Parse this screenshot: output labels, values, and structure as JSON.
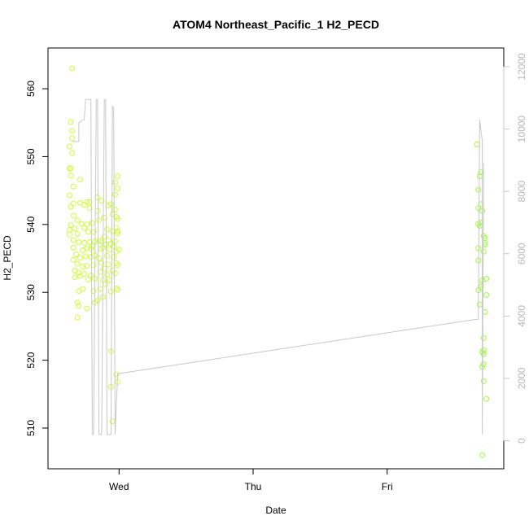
{
  "chart_data": {
    "type": "scatter",
    "title": "ATOM4 Northeast_Pacific_1 H2_PECD",
    "xlabel": "Date",
    "ylabel": "H2_PECD",
    "x_axis": {
      "range": [
        -0.53,
        2.87
      ],
      "ticks": [
        {
          "label": "Wed",
          "value": 0
        },
        {
          "label": "Thu",
          "value": 1
        },
        {
          "label": "Fri",
          "value": 2
        }
      ]
    },
    "y_left": {
      "range": [
        504,
        566
      ],
      "ticks": [
        510,
        520,
        530,
        540,
        550,
        560
      ]
    },
    "y_right": {
      "range": [
        -900,
        12600
      ],
      "ticks": [
        0,
        2000,
        4000,
        6000,
        8000,
        10000,
        12000
      ],
      "color": "#c8c8c8"
    },
    "series": [
      {
        "kind": "points",
        "color": "#ccff33",
        "points": [
          [
            -0.35,
            563.0
          ],
          [
            -0.36,
            555.1
          ],
          [
            -0.35,
            553.8
          ],
          [
            -0.35,
            552.7
          ],
          [
            -0.37,
            551.5
          ],
          [
            -0.35,
            550.5
          ],
          [
            -0.37,
            548.2
          ],
          [
            -0.36,
            548.3
          ],
          [
            -0.36,
            547.2
          ],
          [
            -0.29,
            546.6
          ],
          [
            -0.34,
            545.6
          ],
          [
            -0.37,
            544.3
          ],
          [
            -0.29,
            543.2
          ],
          [
            -0.24,
            543.3
          ],
          [
            -0.26,
            542.9
          ],
          [
            -0.22,
            543.3
          ],
          [
            -0.34,
            543.1
          ],
          [
            -0.36,
            542.6
          ],
          [
            -0.22,
            542.4
          ],
          [
            -0.34,
            541.3
          ],
          [
            -0.31,
            540.6
          ],
          [
            -0.28,
            540.1
          ],
          [
            -0.24,
            540.0
          ],
          [
            -0.36,
            539.9
          ],
          [
            -0.33,
            539.4
          ],
          [
            -0.37,
            539.2
          ],
          [
            -0.37,
            538.5
          ],
          [
            -0.31,
            538.6
          ],
          [
            -0.26,
            539.5
          ],
          [
            -0.23,
            538.9
          ],
          [
            -0.34,
            537.7
          ],
          [
            -0.3,
            537.4
          ],
          [
            -0.26,
            537.3
          ],
          [
            -0.22,
            537.4
          ],
          [
            -0.34,
            536.6
          ],
          [
            -0.27,
            536.2
          ],
          [
            -0.24,
            536.5
          ],
          [
            -0.21,
            536.4
          ],
          [
            -0.32,
            535.6
          ],
          [
            -0.29,
            535.1
          ],
          [
            -0.25,
            535.3
          ],
          [
            -0.21,
            535.2
          ],
          [
            -0.34,
            534.8
          ],
          [
            -0.31,
            534.2
          ],
          [
            -0.27,
            533.8
          ],
          [
            -0.24,
            533.9
          ],
          [
            -0.33,
            533.2
          ],
          [
            -0.3,
            532.9
          ],
          [
            -0.26,
            532.7
          ],
          [
            -0.21,
            532.5
          ],
          [
            -0.33,
            532.2
          ],
          [
            -0.29,
            532.4
          ],
          [
            -0.23,
            531.9
          ],
          [
            -0.3,
            530.2
          ],
          [
            -0.27,
            530.5
          ],
          [
            -0.31,
            528.5
          ],
          [
            -0.3,
            528.0
          ],
          [
            -0.24,
            527.6
          ],
          [
            -0.31,
            526.3
          ],
          [
            -0.2,
            540.2
          ],
          [
            -0.19,
            538.9
          ],
          [
            -0.18,
            537.5
          ],
          [
            -0.2,
            536.8
          ],
          [
            -0.18,
            535.5
          ],
          [
            -0.19,
            534.0
          ],
          [
            -0.18,
            532.0
          ],
          [
            -0.19,
            530.2
          ],
          [
            -0.18,
            528.5
          ],
          [
            -0.16,
            544.0
          ],
          [
            -0.16,
            542.0
          ],
          [
            -0.15,
            540.6
          ],
          [
            -0.15,
            537.6
          ],
          [
            -0.14,
            536.4
          ],
          [
            -0.13,
            537.5
          ],
          [
            -0.12,
            536.6
          ],
          [
            -0.11,
            538.2
          ],
          [
            -0.1,
            537.0
          ],
          [
            -0.15,
            535.0
          ],
          [
            -0.13,
            534.3
          ],
          [
            -0.11,
            533.5
          ],
          [
            -0.14,
            533.0
          ],
          [
            -0.12,
            531.8
          ],
          [
            -0.1,
            531.2
          ],
          [
            -0.14,
            530.5
          ],
          [
            -0.12,
            529.3
          ],
          [
            -0.16,
            528.8
          ],
          [
            -0.13,
            543.5
          ],
          [
            -0.11,
            541.0
          ],
          [
            -0.09,
            539.3
          ],
          [
            -0.08,
            537.7
          ],
          [
            -0.07,
            536.3
          ],
          [
            -0.09,
            535.4
          ],
          [
            -0.08,
            534.1
          ],
          [
            -0.09,
            532.6
          ],
          [
            -0.07,
            531.8
          ],
          [
            -0.06,
            530.1
          ],
          [
            -0.08,
            542.8
          ],
          [
            -0.06,
            543.0
          ],
          [
            -0.05,
            541.5
          ],
          [
            -0.05,
            539.0
          ],
          [
            -0.06,
            537.1
          ],
          [
            -0.04,
            536.8
          ],
          [
            -0.04,
            535.2
          ],
          [
            -0.05,
            533.2
          ],
          [
            -0.06,
            521.3
          ],
          [
            -0.06,
            516.1
          ],
          [
            -0.05,
            511.0
          ],
          [
            -0.03,
            546.2
          ],
          [
            -0.03,
            544.4
          ],
          [
            -0.03,
            542.2
          ],
          [
            -0.02,
            541.1
          ],
          [
            -0.02,
            539.5
          ],
          [
            -0.03,
            537.5
          ],
          [
            -0.02,
            536.0
          ],
          [
            -0.02,
            534.3
          ],
          [
            -0.03,
            532.8
          ],
          [
            -0.02,
            530.6
          ],
          [
            -0.01,
            547.1
          ],
          [
            -0.01,
            545.3
          ],
          [
            -0.01,
            540.8
          ],
          [
            -0.01,
            539.0
          ],
          [
            -0.01,
            538.7
          ],
          [
            -0.02,
            517.9
          ],
          [
            -0.01,
            516.8
          ],
          [
            0.0,
            536.3
          ],
          [
            -0.01,
            530.4
          ],
          [
            -0.01,
            534.0
          ]
        ]
      },
      {
        "kind": "points",
        "color": "#99ff33",
        "points": [
          [
            2.67,
            551.8
          ],
          [
            2.7,
            547.7
          ],
          [
            2.69,
            547.1
          ],
          [
            2.68,
            545.1
          ],
          [
            2.7,
            543.0
          ],
          [
            2.68,
            542.4
          ],
          [
            2.71,
            542.0
          ],
          [
            2.68,
            540.1
          ],
          [
            2.69,
            539.8
          ],
          [
            2.7,
            540.3
          ],
          [
            2.72,
            538.3
          ],
          [
            2.73,
            538.0
          ],
          [
            2.73,
            537.3
          ],
          [
            2.73,
            537.0
          ],
          [
            2.68,
            536.5
          ],
          [
            2.72,
            536.0
          ],
          [
            2.68,
            534.7
          ],
          [
            2.74,
            532.0
          ],
          [
            2.71,
            531.8
          ],
          [
            2.7,
            531.1
          ],
          [
            2.7,
            530.8
          ],
          [
            2.68,
            530.3
          ],
          [
            2.74,
            529.6
          ],
          [
            2.69,
            528.2
          ],
          [
            2.73,
            527.1
          ],
          [
            2.72,
            523.3
          ],
          [
            2.72,
            521.5
          ],
          [
            2.71,
            521.2
          ],
          [
            2.72,
            520.9
          ],
          [
            2.72,
            519.4
          ],
          [
            2.71,
            519.0
          ],
          [
            2.72,
            516.9
          ],
          [
            2.74,
            514.3
          ],
          [
            2.71,
            506.0
          ]
        ]
      },
      {
        "kind": "line",
        "axis": "right",
        "color": "#c8c8c8",
        "points": [
          [
            -0.35,
            9600
          ],
          [
            -0.34,
            9600
          ],
          [
            -0.3,
            9600
          ],
          [
            -0.3,
            9700
          ],
          [
            -0.3,
            10200
          ],
          [
            -0.27,
            10300
          ],
          [
            -0.26,
            10300
          ],
          [
            -0.25,
            10950
          ],
          [
            -0.23,
            10950
          ],
          [
            -0.21,
            10950
          ],
          [
            -0.2,
            200
          ],
          [
            -0.19,
            200
          ],
          [
            -0.17,
            10950
          ],
          [
            -0.16,
            10950
          ],
          [
            -0.15,
            200
          ],
          [
            -0.13,
            200
          ],
          [
            -0.11,
            10950
          ],
          [
            -0.1,
            10950
          ],
          [
            -0.09,
            200
          ],
          [
            -0.06,
            200
          ],
          [
            -0.05,
            10750
          ],
          [
            -0.04,
            10650
          ],
          [
            -0.03,
            200
          ],
          [
            -0.01,
            2150
          ],
          [
            2.67,
            3900
          ],
          [
            2.68,
            3900
          ],
          [
            2.69,
            10300
          ],
          [
            2.71,
            9600
          ],
          [
            2.71,
            200
          ],
          [
            2.72,
            8900
          ]
        ]
      }
    ]
  }
}
